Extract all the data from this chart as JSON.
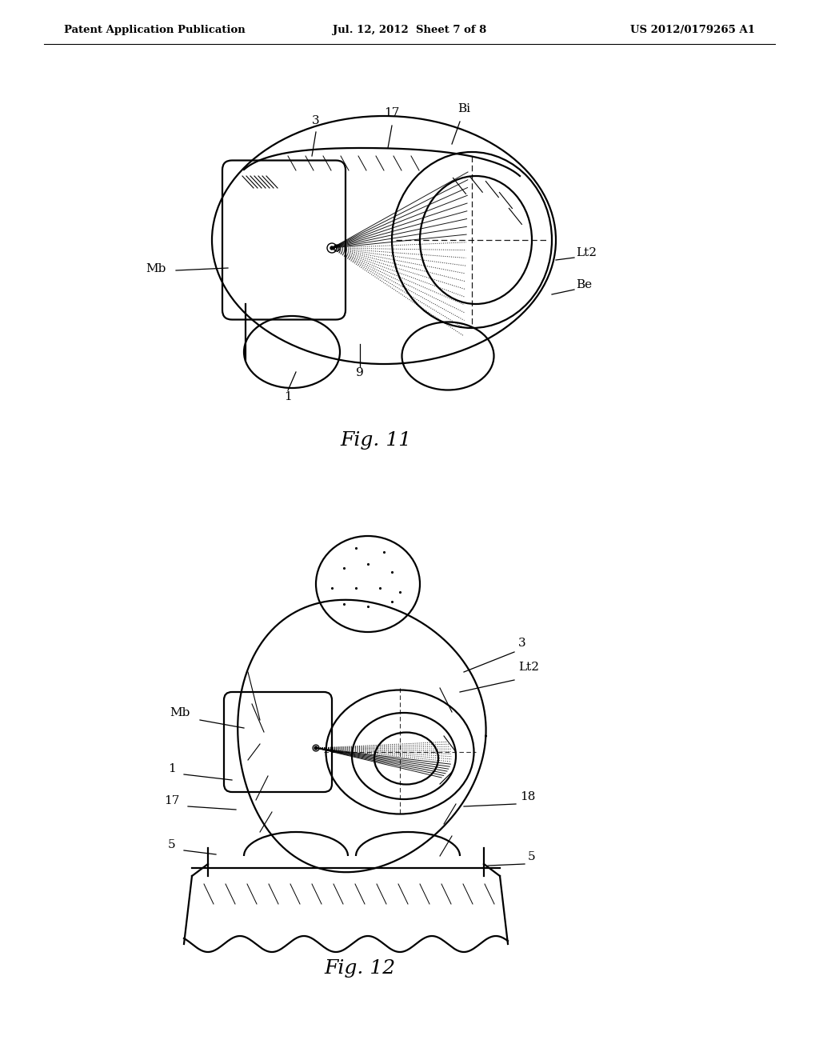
{
  "header_left": "Patent Application Publication",
  "header_mid": "Jul. 12, 2012  Sheet 7 of 8",
  "header_right": "US 2012/0179265 A1",
  "fig11_caption": "Fig. 11",
  "fig12_caption": "Fig. 12",
  "bg_color": "#ffffff",
  "line_color": "#000000",
  "text_color": "#000000",
  "header_fontsize": 9.5,
  "label_fontsize": 11,
  "caption_fontsize": 18
}
